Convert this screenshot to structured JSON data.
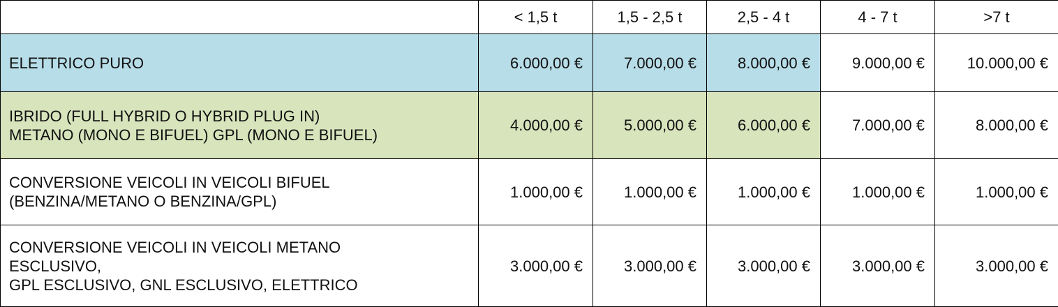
{
  "colors": {
    "highlight_blue": "#b7dde8",
    "highlight_green": "#d8e4bc"
  },
  "columns": [
    "",
    "< 1,5 t",
    "1,5 - 2,5 t",
    "2,5 - 4 t",
    "4 - 7 t",
    ">7 t"
  ],
  "rows": [
    {
      "label_lines": [
        "ELETTRICO PURO"
      ],
      "values": [
        "6.000,00 €",
        "7.000,00 €",
        "8.000,00 €",
        "9.000,00 €",
        "10.000,00 €"
      ]
    },
    {
      "label_lines": [
        "IBRIDO (FULL HYBRID O HYBRID PLUG IN)",
        "METANO (MONO E BIFUEL) GPL (MONO E BIFUEL)"
      ],
      "values": [
        "4.000,00 €",
        "5.000,00 €",
        "6.000,00 €",
        "7.000,00 €",
        "8.000,00 €"
      ]
    },
    {
      "label_lines": [
        "CONVERSIONE VEICOLI IN VEICOLI BIFUEL",
        "(BENZINA/METANO O BENZINA/GPL)"
      ],
      "values": [
        "1.000,00 €",
        "1.000,00 €",
        "1.000,00 €",
        "1.000,00 €",
        "1.000,00 €"
      ]
    },
    {
      "label_lines": [
        "CONVERSIONE VEICOLI IN VEICOLI METANO",
        "ESCLUSIVO,",
        "GPL ESCLUSIVO, GNL ESCLUSIVO, ELETTRICO"
      ],
      "values": [
        "3.000,00 €",
        "3.000,00 €",
        "3.000,00 €",
        "3.000,00 €",
        "3.000,00 €"
      ]
    }
  ]
}
